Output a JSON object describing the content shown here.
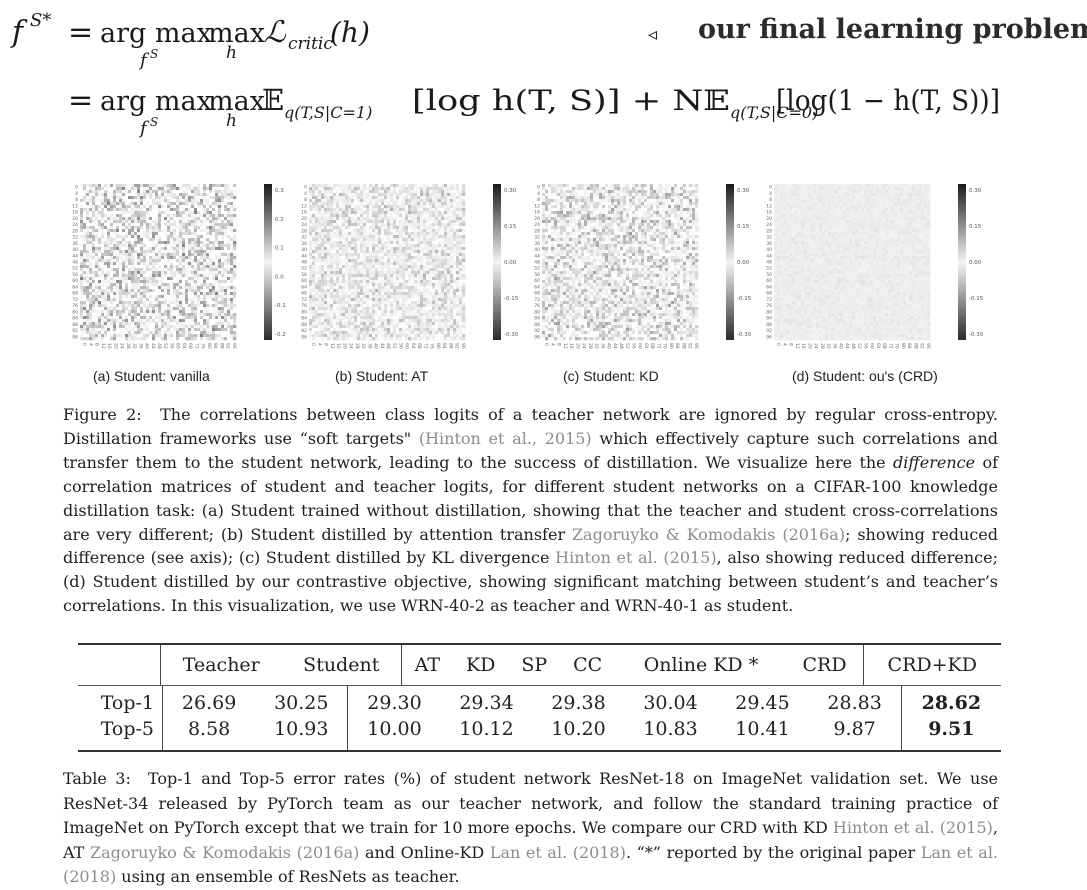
{
  "equation": {
    "line1_lhs": "f",
    "line1_lhs_sup": "S*",
    "eq_sign": "=",
    "argmax": "arg max",
    "argmax_sub": "f",
    "argmax_sub_sup": "S",
    "max": "max",
    "max_sub": "h",
    "loss": "ℒ",
    "loss_sub": "critic",
    "loss_arg": "(h)",
    "note_arrow": "◃",
    "note_text": "our final learning problem",
    "line2_term1": "𝔼",
    "line2_term1_sub": "q(T,S|C=1)",
    "line2_term1_body": "[log h(T, S)] + N𝔼",
    "line2_term2_sub": "q(T,S|C=0)",
    "line2_term2_body": "[log(1 − h(T, S))]"
  },
  "figure": {
    "panels": [
      {
        "caption": "(a) Student: vanilla",
        "ticks": [
          "0.3",
          "0.2",
          "0.1",
          "0.0",
          "-0.1",
          "-0.2"
        ],
        "contrast": 0.55
      },
      {
        "caption": "(b) Student: AT",
        "ticks": [
          "0.30",
          "0.15",
          "0.00",
          "-0.15",
          "-0.30"
        ],
        "contrast": 0.3
      },
      {
        "caption": "(c) Student: KD",
        "ticks": [
          "0.30",
          "0.15",
          "0.00",
          "-0.15",
          "-0.30"
        ],
        "contrast": 0.42
      },
      {
        "caption": "(d) Student: ou's (CRD)",
        "ticks": [
          "0.30",
          "0.15",
          "0.00",
          "-0.15",
          "-0.30"
        ],
        "contrast": 0.06
      }
    ],
    "axis_ticks": [
      "0",
      "4",
      "8",
      "12",
      "16",
      "20",
      "24",
      "28",
      "32",
      "36",
      "40",
      "44",
      "48",
      "52",
      "56",
      "60",
      "64",
      "68",
      "72",
      "76",
      "80",
      "84",
      "88",
      "92",
      "96"
    ],
    "caption_label": "Figure 2:",
    "caption_parts": [
      "The correlations between class logits of a teacher network are ignored by regular cross-entropy. Distillation frameworks use “soft targets\" ",
      "(Hinton et al., 2015)",
      " which effectively capture such correlations and transfer them to the student network, leading to the success of distillation. We visualize here the ",
      "difference",
      " of correlation matrices of student and teacher logits, for different student networks on a CIFAR-100 knowledge distillation task: (a) Student trained without distillation, showing that the teacher and student cross-correlations are very different; (b) Student distilled by attention transfer ",
      "Zagoruyko & Komodakis (2016a)",
      "; showing reduced difference (see axis); (c) Student distilled by KL divergence ",
      "Hinton et al. (2015)",
      ", also showing reduced difference; (d) Student distilled by our contrastive objective, showing significant matching between student’s and teacher’s correlations. In this visualization, we use WRN-40-2 as teacher and WRN-40-1 as student."
    ]
  },
  "table": {
    "headers": [
      "",
      "Teacher",
      "Student",
      "AT",
      "KD",
      "SP",
      "CC",
      "Online KD *",
      "CRD",
      "CRD+KD"
    ],
    "rows": [
      {
        "label": "Top-1",
        "values": [
          "26.69",
          "30.25",
          "29.30",
          "29.34",
          "29.38",
          "30.04",
          "29.45",
          "28.83",
          "28.62"
        ]
      },
      {
        "label": "Top-5",
        "values": [
          "8.58",
          "10.93",
          "10.00",
          "10.12",
          "10.20",
          "10.83",
          "10.41",
          "9.87",
          "9.51"
        ]
      }
    ],
    "caption_label": "Table 3:",
    "caption_parts": [
      "Top-1 and Top-5 error rates (%) of student network ResNet-18 on ImageNet validation set. We use ResNet-34 released by PyTorch team as our teacher network, and follow the standard training practice of ImageNet on PyTorch except that we train for 10 more epochs. We compare our CRD with KD ",
      "Hinton et al. (2015)",
      ", AT ",
      "Zagoruyko & Komodakis (2016a)",
      " and Online-KD ",
      "Lan et al. (2018)",
      ". “*” reported by the original paper ",
      "Lan et al. (2018)",
      " using an ensemble of ResNets as teacher."
    ]
  }
}
